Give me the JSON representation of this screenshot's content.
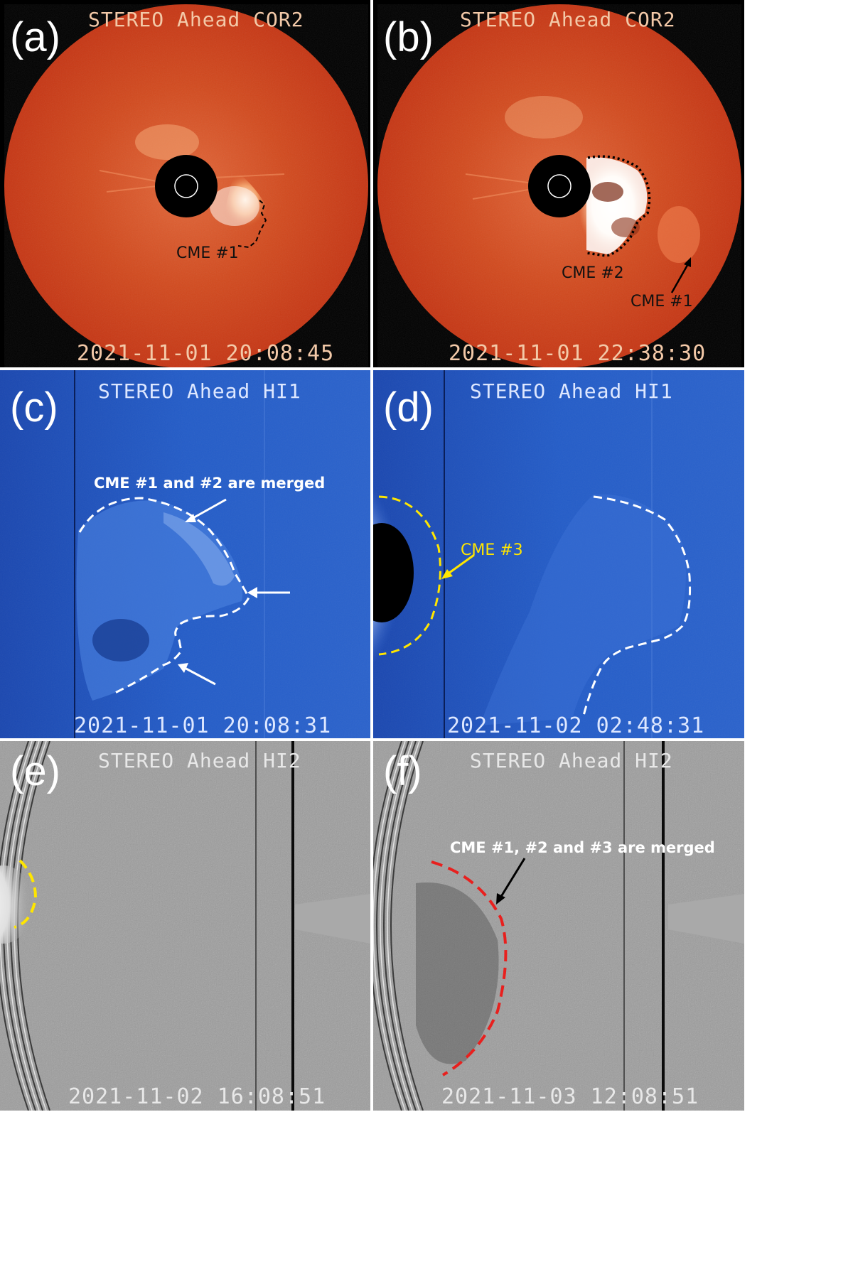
{
  "panels": {
    "a": {
      "letter": "(a)",
      "instrument": "STEREO Ahead COR2",
      "timestamp": "2021-11-01 20:08:45",
      "labels": {
        "cme1": "CME #1"
      }
    },
    "b": {
      "letter": "(b)",
      "instrument": "STEREO Ahead COR2",
      "timestamp": "2021-11-01 22:38:30",
      "labels": {
        "cme2": "CME #2",
        "cme1": "CME #1"
      }
    },
    "c": {
      "letter": "(c)",
      "instrument": "STEREO Ahead HI1",
      "timestamp": "2021-11-01 20:08:31",
      "labels": {
        "merged": "CME #1 and #2 are merged"
      }
    },
    "d": {
      "letter": "(d)",
      "instrument": "STEREO Ahead HI1",
      "timestamp": "2021-11-02 02:48:31",
      "labels": {
        "cme3": "CME #3"
      }
    },
    "e": {
      "letter": "(e)",
      "instrument": "STEREO Ahead HI2",
      "timestamp": "2021-11-02 16:08:51"
    },
    "f": {
      "letter": "(f)",
      "instrument": "STEREO Ahead HI2",
      "timestamp": "2021-11-03 12:08:51",
      "labels": {
        "merged": "CME #1, #2 and #3 are merged"
      }
    }
  },
  "colors": {
    "cor2_background": "#cc3a14",
    "hi1_background": "#1e55c2",
    "hi2_background": "#9a9a9a",
    "cme3_outline": "#ffe600",
    "hi2_cme_outline": "#e8201e"
  }
}
